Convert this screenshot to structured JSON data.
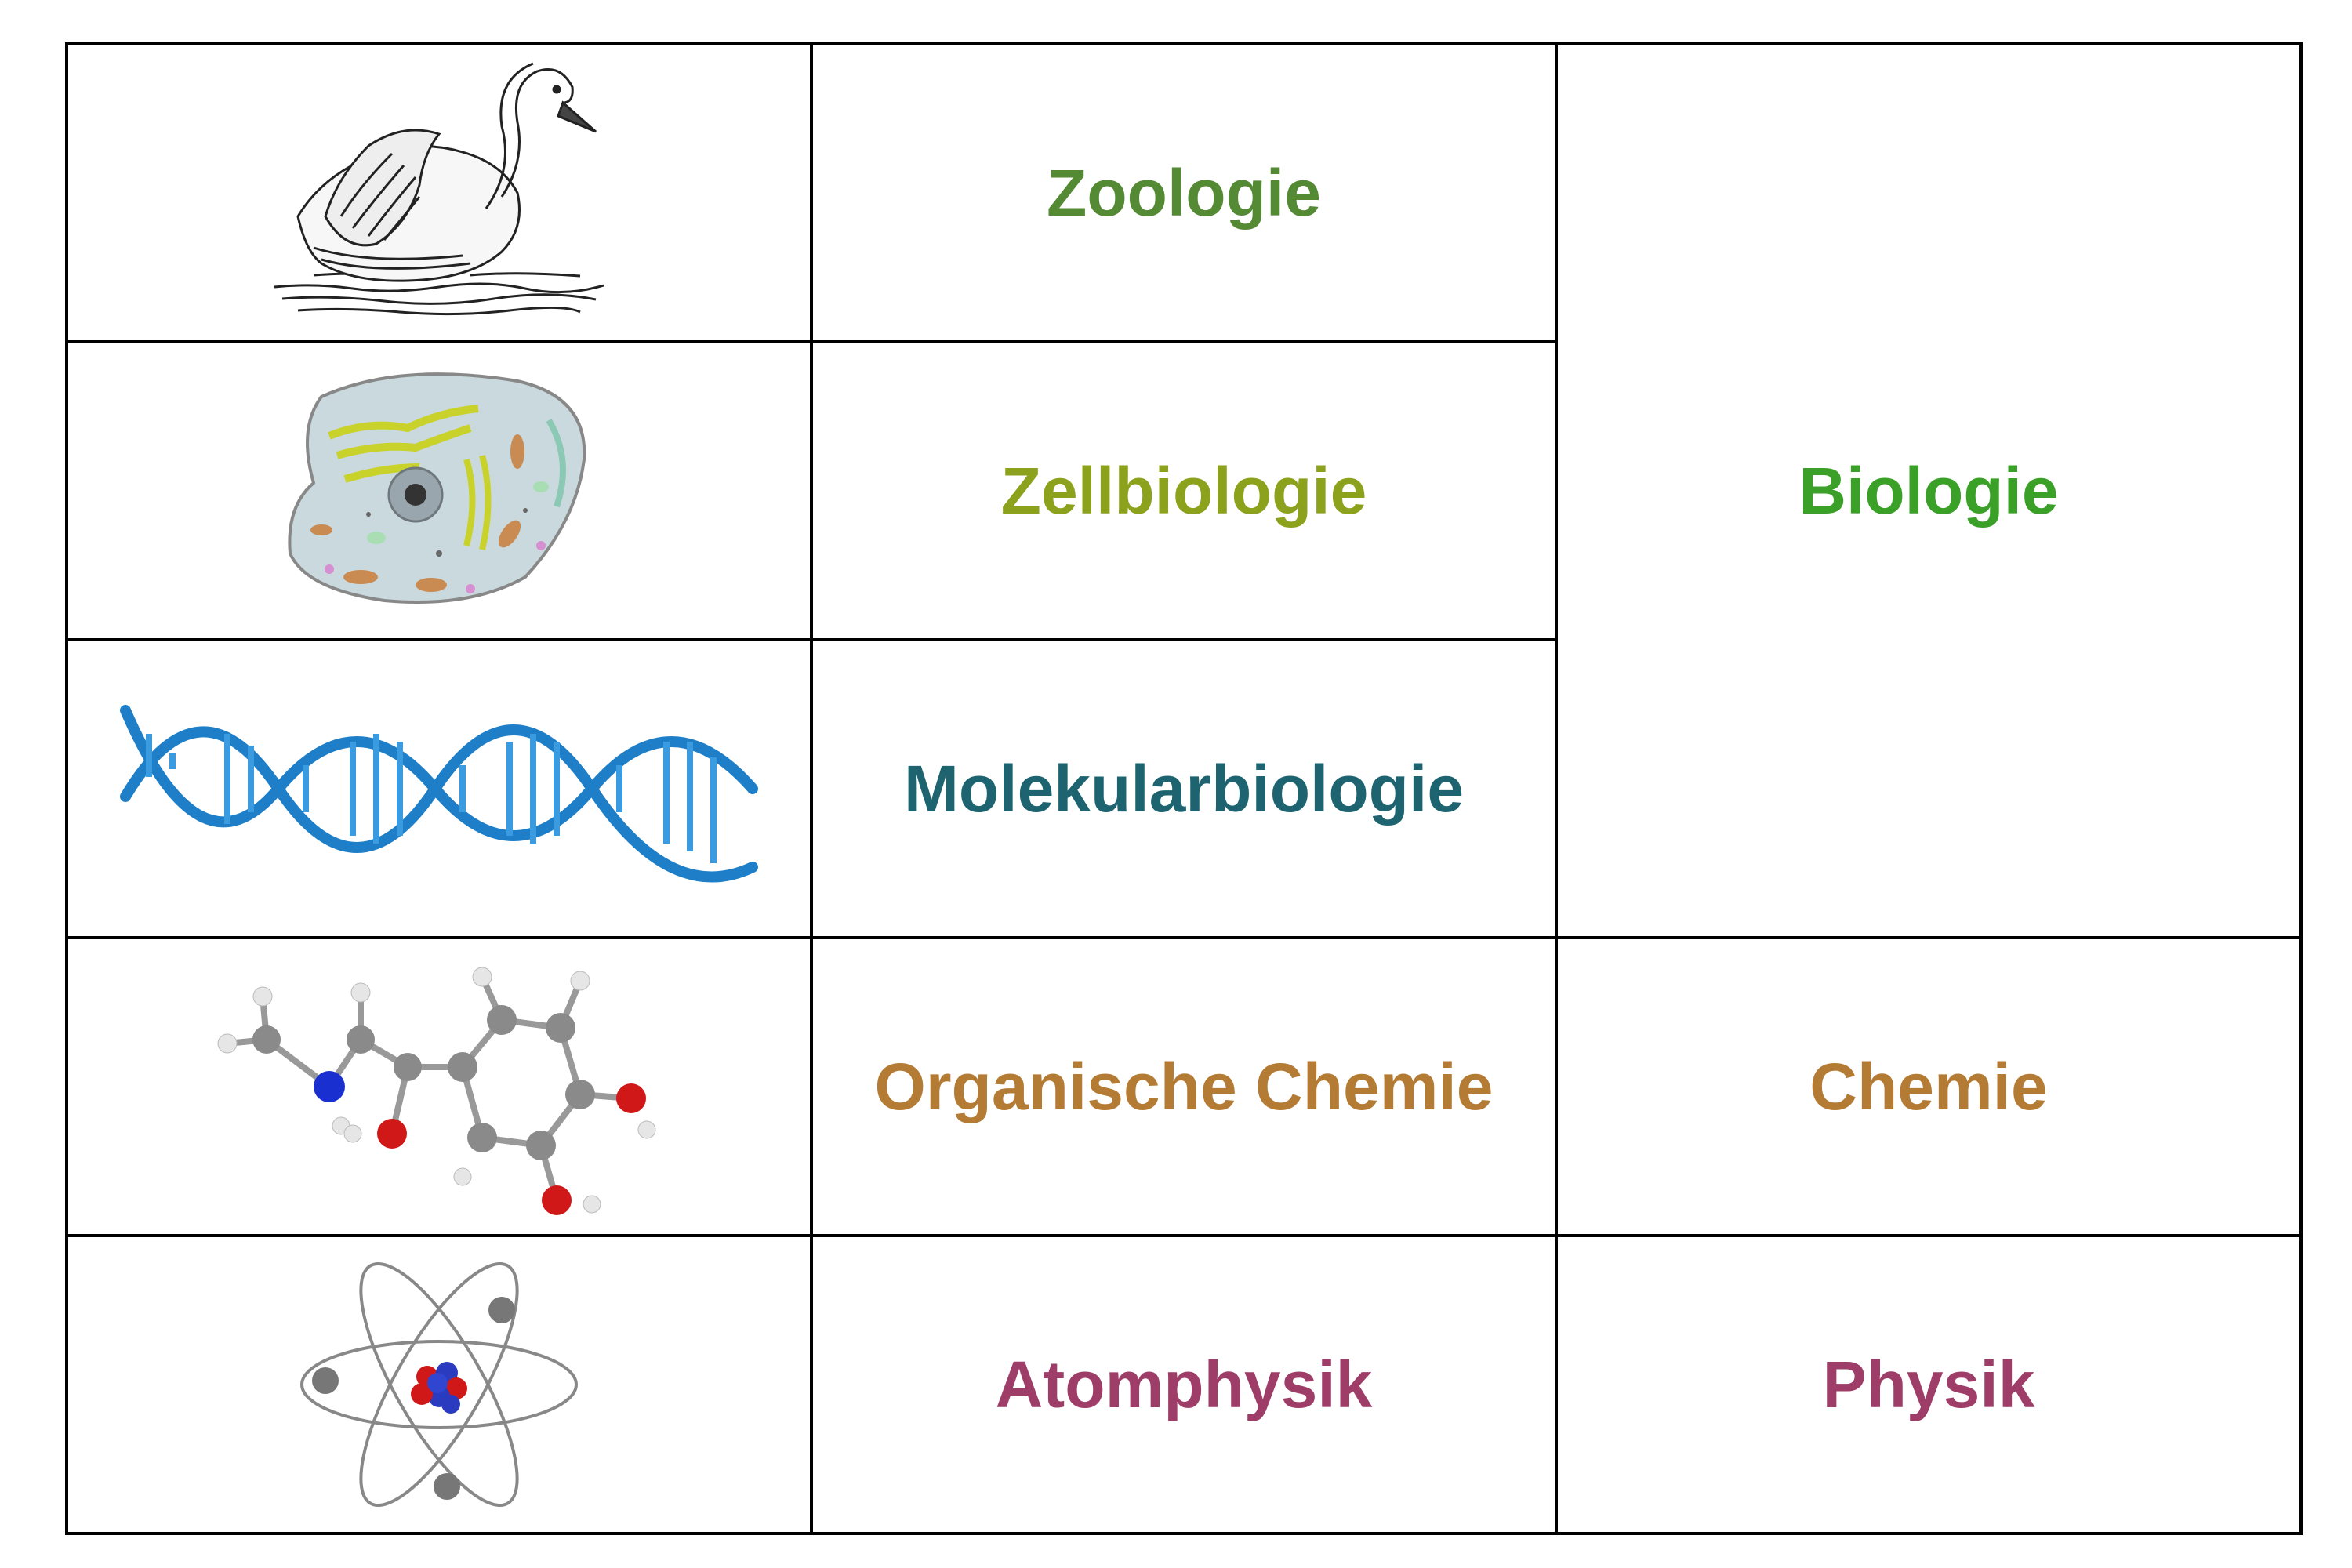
{
  "rows": [
    {
      "image": {
        "icon": "swan-icon"
      },
      "subfield": {
        "label": "Zoologie",
        "color": "#548A34"
      }
    },
    {
      "image": {
        "icon": "animal-cell-icon"
      },
      "subfield": {
        "label": "Zellbiologie",
        "color": "#8CA21D"
      }
    },
    {
      "image": {
        "icon": "dna-helix-icon"
      },
      "subfield": {
        "label": "Molekularbiologie",
        "color": "#1D6470"
      }
    },
    {
      "image": {
        "icon": "molecule-icon"
      },
      "subfield": {
        "label": "Organische Chemie",
        "color": "#B47B35"
      }
    },
    {
      "image": {
        "icon": "atom-icon"
      },
      "subfield": {
        "label": "Atomphysik",
        "color": "#9E3D68"
      }
    }
  ],
  "fields": [
    {
      "label": "Biologie",
      "color": "#3AA028"
    },
    {
      "label": "Chemie",
      "color": "#B47B35"
    },
    {
      "label": "Physik",
      "color": "#9E3D68"
    }
  ]
}
